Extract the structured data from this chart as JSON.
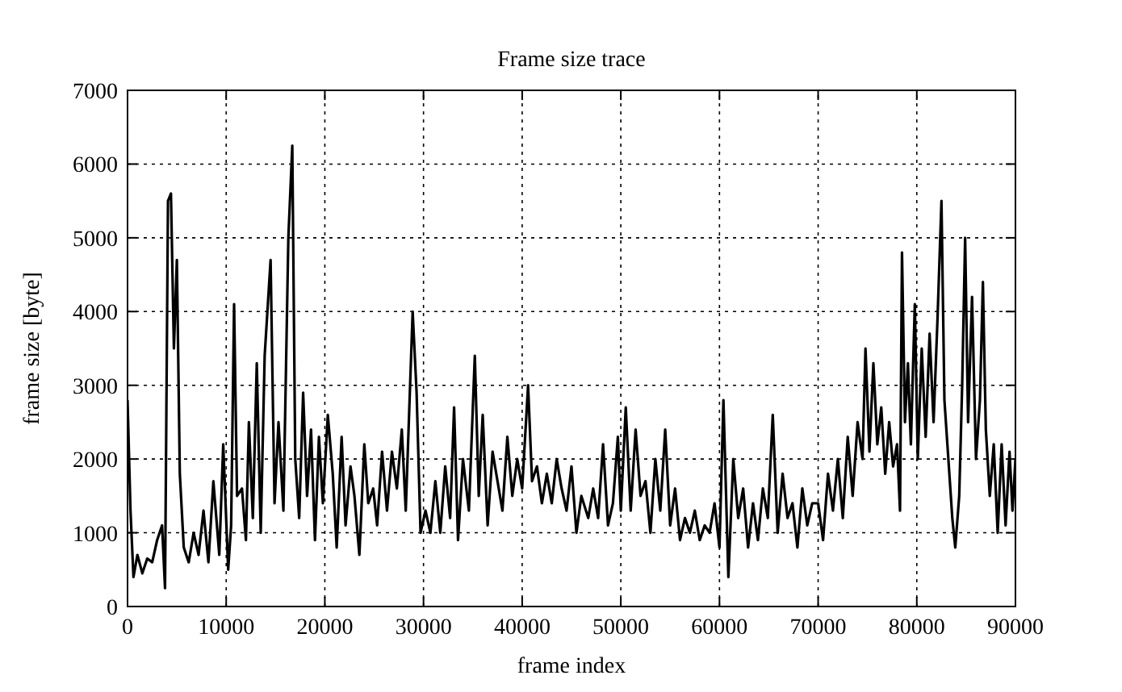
{
  "chart_data": {
    "type": "line",
    "title": "Frame size trace",
    "xlabel": "frame index",
    "ylabel": "frame size [byte]",
    "xlim": [
      0,
      90000
    ],
    "ylim": [
      0,
      7000
    ],
    "xticks": [
      0,
      10000,
      20000,
      30000,
      40000,
      50000,
      60000,
      70000,
      80000,
      90000
    ],
    "yticks": [
      0,
      1000,
      2000,
      3000,
      4000,
      5000,
      6000,
      7000
    ],
    "grid": true,
    "x": [
      0,
      300,
      600,
      1000,
      1500,
      2000,
      2500,
      3000,
      3500,
      3800,
      4100,
      4400,
      4700,
      5000,
      5300,
      5700,
      6200,
      6700,
      7200,
      7700,
      8200,
      8700,
      9300,
      9700,
      10200,
      10500,
      10800,
      11100,
      11600,
      12000,
      12300,
      12700,
      13100,
      13500,
      13900,
      14500,
      14900,
      15300,
      15800,
      16300,
      16700,
      17000,
      17400,
      17800,
      18200,
      18600,
      19000,
      19400,
      19800,
      20300,
      20800,
      21200,
      21700,
      22100,
      22600,
      23000,
      23500,
      24000,
      24400,
      24900,
      25300,
      25800,
      26300,
      26800,
      27300,
      27800,
      28200,
      28900,
      29300,
      29700,
      30200,
      30700,
      31200,
      31700,
      32200,
      32700,
      33100,
      33500,
      34000,
      34600,
      35200,
      35600,
      36000,
      36500,
      37000,
      37500,
      38000,
      38500,
      39000,
      39500,
      40000,
      40600,
      41000,
      41500,
      42000,
      42500,
      43000,
      43500,
      44000,
      44500,
      45000,
      45500,
      46000,
      46700,
      47200,
      47700,
      48200,
      48700,
      49200,
      49700,
      50000,
      50500,
      51000,
      51500,
      52000,
      52500,
      53000,
      53500,
      54000,
      54500,
      55000,
      55500,
      56000,
      56500,
      57000,
      57500,
      58000,
      58500,
      59000,
      59500,
      60000,
      60400,
      60900,
      61400,
      61900,
      62400,
      62900,
      63400,
      63900,
      64400,
      64900,
      65400,
      65900,
      66400,
      66900,
      67400,
      67900,
      68400,
      68900,
      69400,
      70000,
      70500,
      71000,
      71500,
      72000,
      72500,
      73000,
      73500,
      74000,
      74500,
      74800,
      75200,
      75600,
      76000,
      76400,
      76800,
      77200,
      77600,
      78000,
      78300,
      78500,
      78800,
      79100,
      79400,
      79800,
      80100,
      80500,
      80900,
      81300,
      81700,
      82100,
      82500,
      82800,
      83200,
      83600,
      83900,
      84300,
      84600,
      84900,
      85200,
      85600,
      86000,
      86400,
      86700,
      87000,
      87400,
      87800,
      88200,
      88600,
      89000,
      89400,
      89700,
      90000
    ],
    "series": [
      {
        "color": "#000000",
        "values": [
          2800,
          1300,
          400,
          700,
          450,
          650,
          600,
          900,
          1100,
          250,
          5500,
          5600,
          3500,
          4700,
          1800,
          800,
          600,
          1000,
          700,
          1300,
          600,
          1700,
          700,
          2200,
          500,
          1100,
          4100,
          1500,
          1600,
          900,
          2500,
          1200,
          3300,
          1000,
          3400,
          4700,
          1400,
          2500,
          1300,
          5000,
          6250,
          2000,
          1200,
          2900,
          1500,
          2400,
          900,
          2300,
          1400,
          2600,
          1800,
          800,
          2300,
          1100,
          1900,
          1500,
          700,
          2200,
          1400,
          1600,
          1100,
          2100,
          1300,
          2100,
          1600,
          2400,
          1300,
          4000,
          2900,
          1000,
          1300,
          1000,
          1700,
          1000,
          1900,
          1200,
          2700,
          900,
          2000,
          1300,
          3400,
          1500,
          2600,
          1100,
          2100,
          1700,
          1300,
          2300,
          1500,
          2000,
          1600,
          3000,
          1700,
          1900,
          1400,
          1800,
          1400,
          2000,
          1600,
          1300,
          1900,
          1000,
          1500,
          1200,
          1600,
          1200,
          2200,
          1100,
          1400,
          2300,
          1300,
          2700,
          1300,
          2400,
          1500,
          1700,
          1000,
          2000,
          1300,
          2400,
          1100,
          1600,
          900,
          1200,
          1000,
          1300,
          900,
          1100,
          1000,
          1400,
          800,
          2800,
          400,
          2000,
          1200,
          1600,
          800,
          1400,
          900,
          1600,
          1200,
          2600,
          1000,
          1800,
          1200,
          1400,
          800,
          1600,
          1100,
          1400,
          1400,
          900,
          1800,
          1300,
          2000,
          1200,
          2300,
          1500,
          2500,
          2000,
          3500,
          2100,
          3300,
          2200,
          2700,
          1800,
          2500,
          1900,
          2200,
          1300,
          4800,
          2500,
          3300,
          2200,
          4100,
          2000,
          3500,
          2300,
          3700,
          2500,
          3900,
          5500,
          2800,
          2000,
          1200,
          800,
          1500,
          3000,
          5000,
          2500,
          4200,
          2000,
          2800,
          4400,
          2400,
          1500,
          2200,
          1000,
          2200,
          1100,
          2100,
          1300,
          2000
        ]
      }
    ]
  }
}
